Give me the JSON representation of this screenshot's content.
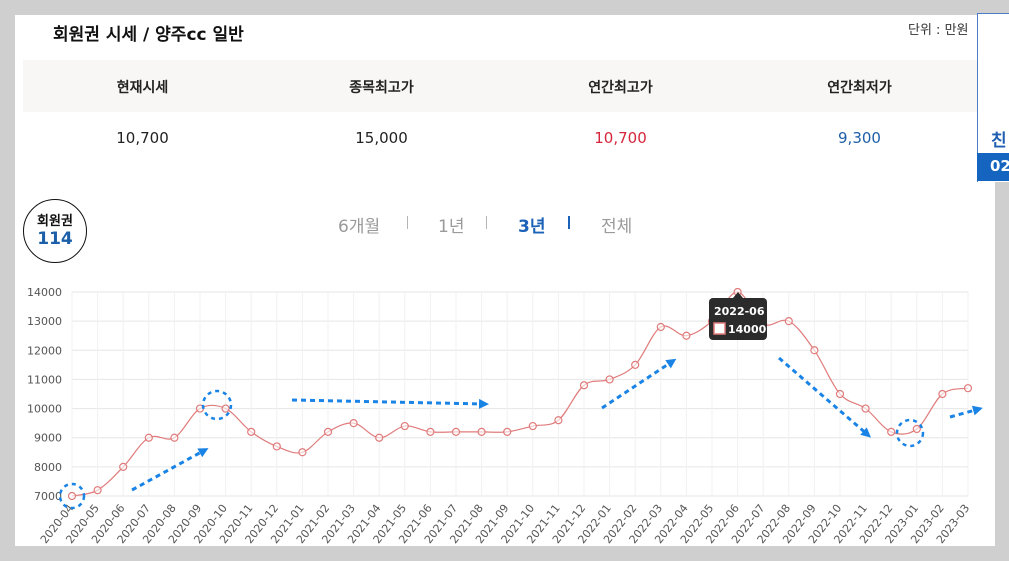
{
  "header": {
    "title": "회원권 시세 / 양주cc 일반",
    "unit": "단위 : 만원"
  },
  "summary": {
    "columns": [
      {
        "label": "현재시세",
        "value": "10,700"
      },
      {
        "label": "종목최고가",
        "value": "15,000"
      },
      {
        "label": "연간최고가",
        "value": "10,700"
      },
      {
        "label": "연간최저가",
        "value": "9,300"
      }
    ]
  },
  "side_panel": {
    "text": "친",
    "bar_text": "02"
  },
  "badge": {
    "line1": "회원권",
    "line2": "114"
  },
  "tabs": [
    {
      "label": "6개월",
      "active": false
    },
    {
      "label": "1년",
      "active": false
    },
    {
      "label": "3년",
      "active": true
    },
    {
      "label": "전체",
      "active": false
    }
  ],
  "colors": {
    "line": "#e07b7b",
    "point": "#e07b7b",
    "accent": "#1b62b8",
    "arrow": "#1a84e6"
  },
  "tooltip": {
    "label": "2022-06",
    "value": "14000"
  },
  "chart_data": {
    "type": "line",
    "title": "",
    "xlabel": "",
    "ylabel": "",
    "ylim": [
      7000,
      14000
    ],
    "yticks": [
      7000,
      8000,
      9000,
      10000,
      11000,
      12000,
      13000,
      14000
    ],
    "categories": [
      "2020-04",
      "2020-05",
      "2020-06",
      "2020-07",
      "2020-08",
      "2020-09",
      "2020-10",
      "2020-11",
      "2020-12",
      "2021-01",
      "2021-02",
      "2021-03",
      "2021-04",
      "2021-05",
      "2021-06",
      "2021-07",
      "2021-08",
      "2021-09",
      "2021-10",
      "2021-11",
      "2021-12",
      "2022-01",
      "2022-02",
      "2022-03",
      "2022-04",
      "2022-05",
      "2022-06",
      "2022-07",
      "2022-08",
      "2022-09",
      "2022-10",
      "2022-11",
      "2022-12",
      "2023-01",
      "2023-02",
      "2023-03"
    ],
    "series": [
      {
        "values": [
          7000,
          7200,
          8000,
          9000,
          9000,
          10000,
          10000,
          9200,
          8700,
          8500,
          9200,
          9500,
          9000,
          9400,
          9200,
          9200,
          9200,
          9200,
          9400,
          9600,
          10800,
          11000,
          11500,
          12800,
          12500,
          13000,
          14000,
          12900,
          13000,
          12000,
          10500,
          10000,
          9200,
          9300,
          10500,
          10700
        ]
      }
    ],
    "grid": true,
    "legend": "none"
  }
}
